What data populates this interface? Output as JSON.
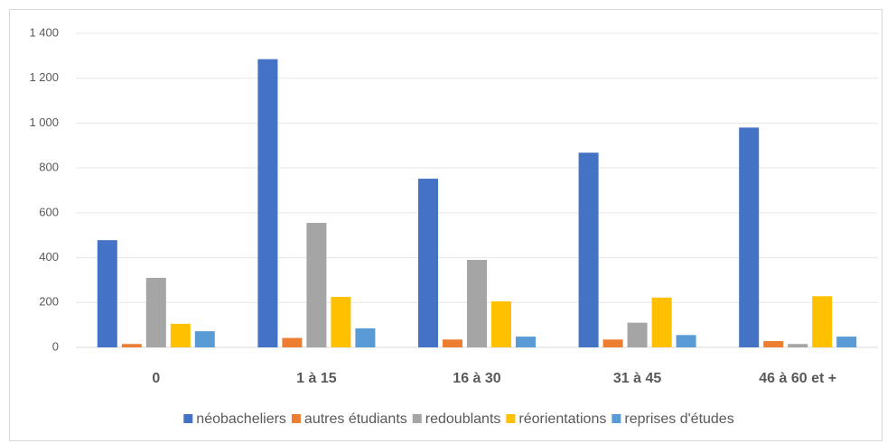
{
  "chart_data": {
    "type": "bar",
    "categories": [
      "0",
      "1 à 15",
      "16 à 30",
      "31 à 45",
      "46 à 60 et +"
    ],
    "series": [
      {
        "name": "néobacheliers",
        "color": "#4472c4",
        "values": [
          478,
          1285,
          752,
          868,
          980
        ]
      },
      {
        "name": "autres étudiants",
        "color": "#ed7d31",
        "values": [
          15,
          42,
          35,
          35,
          28
        ]
      },
      {
        "name": "redoublants",
        "color": "#a5a5a5",
        "values": [
          310,
          555,
          390,
          110,
          15
        ]
      },
      {
        "name": "réorientations",
        "color": "#ffc000",
        "values": [
          105,
          225,
          205,
          222,
          228
        ]
      },
      {
        "name": "reprises d'études",
        "color": "#5b9bd5",
        "values": [
          72,
          85,
          48,
          55,
          48
        ]
      }
    ],
    "ylim": [
      0,
      1400
    ],
    "yticks": [
      0,
      200,
      400,
      600,
      800,
      {
        "value": 1000,
        "label": "1 000"
      },
      {
        "value": 1200,
        "label": "1 200"
      },
      {
        "value": 1400,
        "label": "1 400"
      }
    ],
    "grid": true,
    "legend": "bottom"
  }
}
